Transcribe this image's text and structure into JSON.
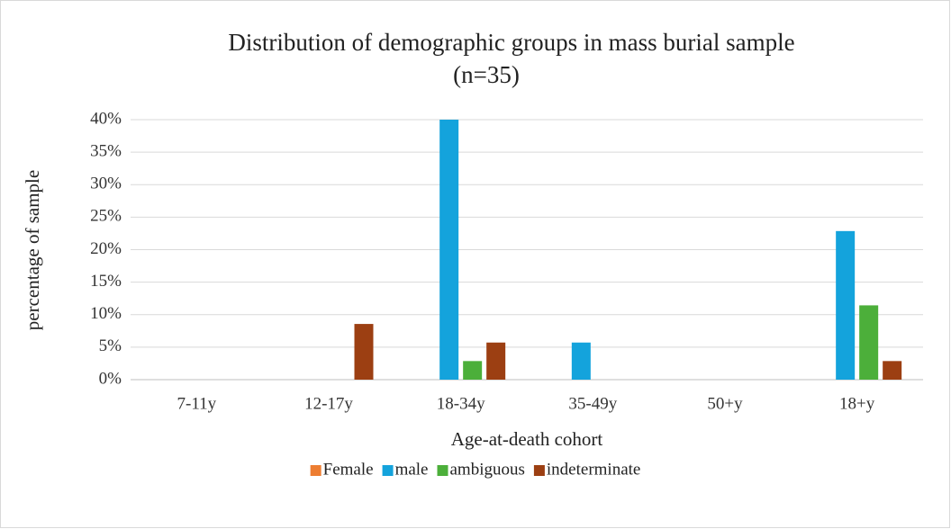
{
  "chart_data": {
    "type": "bar",
    "title": [
      "Distribution of demographic groups in mass burial sample",
      "(n=35)"
    ],
    "x_label": "Age-at-death cohort",
    "y_label": "percentage of sample",
    "categories": [
      "7-11y",
      "12-17y",
      "18-34y",
      "35-49y",
      "50+y",
      "18+y"
    ],
    "series": [
      {
        "name": "Female",
        "color": "#ed7d31",
        "values": [
          0,
          0,
          0,
          0,
          0,
          0
        ]
      },
      {
        "name": "male",
        "color": "#14a3dc",
        "values": [
          0,
          0,
          40,
          5.71,
          0,
          22.86
        ]
      },
      {
        "name": "ambiguous",
        "color": "#4caf3a",
        "values": [
          0,
          0,
          2.86,
          0,
          0,
          11.43
        ]
      },
      {
        "name": "indeterminate",
        "color": "#9c3f12",
        "values": [
          0,
          8.57,
          5.71,
          0,
          0,
          2.86
        ]
      }
    ],
    "ylim": [
      0,
      40
    ],
    "yticks": [
      {
        "value": 0,
        "label": "0%"
      },
      {
        "value": 5,
        "label": "5%"
      },
      {
        "value": 10,
        "label": "10%"
      },
      {
        "value": 15,
        "label": "15%"
      },
      {
        "value": 20,
        "label": "20%"
      },
      {
        "value": 25,
        "label": "25%"
      },
      {
        "value": 30,
        "label": "30%"
      },
      {
        "value": 35,
        "label": "35%"
      },
      {
        "value": 40,
        "label": "40%"
      }
    ],
    "grid": true,
    "legend": "bottom"
  }
}
